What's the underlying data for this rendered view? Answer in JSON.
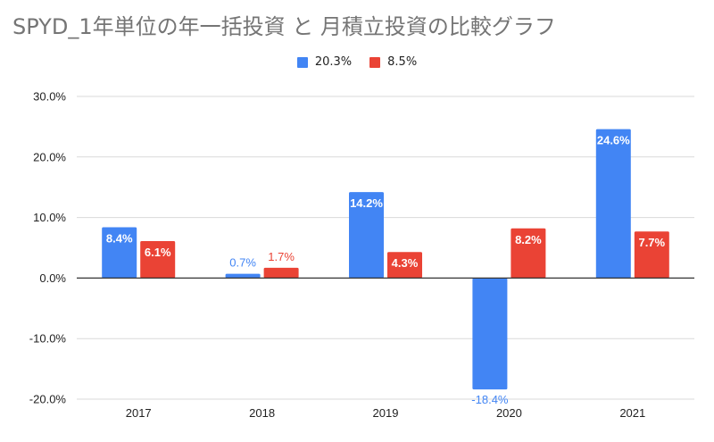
{
  "chart_data": {
    "type": "bar",
    "title": "SPYD_1年単位の年一括投資 と 月積立投資の比較グラフ",
    "categories": [
      "2017",
      "2018",
      "2019",
      "2020",
      "2021"
    ],
    "series": [
      {
        "name": "20.3%",
        "color": "#4285f4",
        "values": [
          8.4,
          0.7,
          14.2,
          -18.4,
          24.6
        ],
        "labels": [
          "8.4%",
          "0.7%",
          "14.2%",
          "-18.4%",
          "24.6%"
        ]
      },
      {
        "name": "8.5%",
        "color": "#ea4335",
        "values": [
          6.1,
          1.7,
          4.3,
          8.2,
          7.7
        ],
        "labels": [
          "6.1%",
          "1.7%",
          "4.3%",
          "8.2%",
          "7.7%"
        ]
      }
    ],
    "ylim": [
      -20,
      30
    ],
    "yticks": [
      30,
      20,
      10,
      0,
      -10,
      -20
    ],
    "ytick_labels": [
      "30.0%",
      "20.0%",
      "10.0%",
      "0.0%",
      "-10.0%",
      "-20.0%"
    ],
    "grid": true,
    "legend": "top-center",
    "xlabel": "",
    "ylabel": ""
  }
}
